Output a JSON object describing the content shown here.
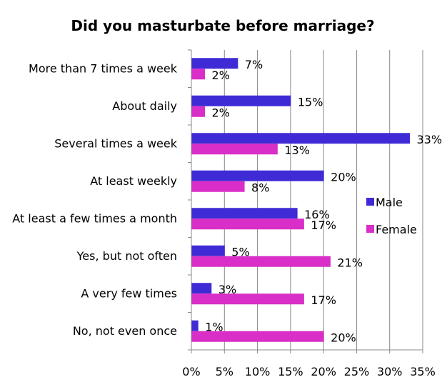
{
  "chart_data": {
    "type": "bar",
    "orientation": "horizontal",
    "title": "Did you masturbate before marriage?",
    "categories": [
      "More than 7 times a week",
      "About daily",
      "Several times a week",
      "At least weekly",
      "At least a few times a month",
      "Yes, but not often",
      "A very few times",
      "No, not even once"
    ],
    "series": [
      {
        "name": "Male",
        "color": "#3f2bd6",
        "values": [
          7,
          15,
          33,
          20,
          16,
          5,
          3,
          1
        ],
        "labels": [
          "7%",
          "15%",
          "33%",
          "20%",
          "16%",
          "5%",
          "3%",
          "1%"
        ]
      },
      {
        "name": "Female",
        "color": "#d92ec8",
        "values": [
          2,
          2,
          13,
          8,
          17,
          21,
          17,
          20
        ],
        "labels": [
          "2%",
          "2%",
          "13%",
          "8%",
          "17%",
          "21%",
          "17%",
          "20%"
        ]
      }
    ],
    "xlim": [
      0,
      35
    ],
    "x_ticks": [
      0,
      5,
      10,
      15,
      20,
      25,
      30,
      35
    ],
    "x_tick_labels": [
      "0%",
      "5%",
      "10%",
      "15%",
      "20%",
      "25%",
      "30%",
      "35%"
    ],
    "grid": "vertical",
    "legend": "right"
  }
}
